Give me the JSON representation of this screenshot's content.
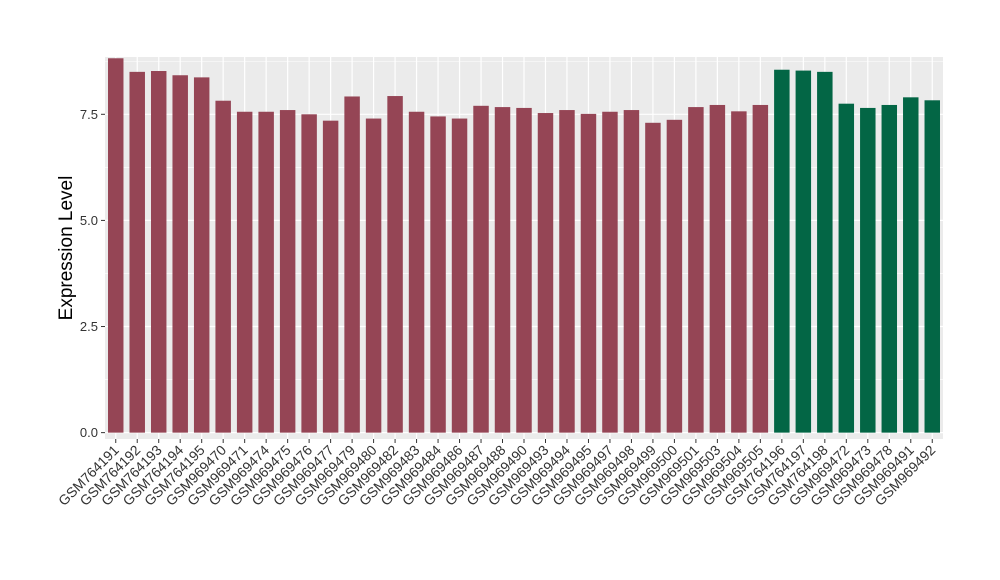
{
  "chart_data": {
    "type": "bar",
    "title": "",
    "xlabel": "",
    "ylabel": "Expression Level",
    "ylim": [
      -0.15,
      8.85
    ],
    "yticks": [
      0.0,
      2.5,
      5.0,
      7.5
    ],
    "ytick_labels": [
      "0.0",
      "2.5",
      "5.0",
      "7.5"
    ],
    "grid": true,
    "legend": "none",
    "colors": {
      "group_a": "#954555",
      "group_b": "#036645",
      "panel": "#ebebeb",
      "grid": "#ffffff"
    },
    "categories": [
      "GSM764191",
      "GSM764192",
      "GSM764193",
      "GSM764194",
      "GSM764195",
      "GSM969470",
      "GSM969471",
      "GSM969474",
      "GSM969475",
      "GSM969476",
      "GSM969477",
      "GSM969479",
      "GSM969480",
      "GSM969482",
      "GSM969483",
      "GSM969484",
      "GSM969486",
      "GSM969487",
      "GSM969488",
      "GSM969490",
      "GSM969493",
      "GSM969494",
      "GSM969495",
      "GSM969497",
      "GSM969498",
      "GSM969499",
      "GSM969500",
      "GSM969501",
      "GSM969503",
      "GSM969504",
      "GSM969505",
      "GSM764196",
      "GSM764197",
      "GSM764198",
      "GSM969472",
      "GSM969473",
      "GSM969478",
      "GSM969491",
      "GSM969492"
    ],
    "values": [
      8.82,
      8.5,
      8.52,
      8.42,
      8.37,
      7.82,
      7.56,
      7.56,
      7.6,
      7.5,
      7.35,
      7.92,
      7.4,
      7.93,
      7.56,
      7.45,
      7.4,
      7.7,
      7.67,
      7.65,
      7.53,
      7.6,
      7.51,
      7.56,
      7.6,
      7.3,
      7.37,
      7.67,
      7.72,
      7.57,
      7.72,
      8.55,
      8.53,
      8.5,
      7.75,
      7.65,
      7.72,
      7.9,
      7.83
    ],
    "groups": [
      "a",
      "a",
      "a",
      "a",
      "a",
      "a",
      "a",
      "a",
      "a",
      "a",
      "a",
      "a",
      "a",
      "a",
      "a",
      "a",
      "a",
      "a",
      "a",
      "a",
      "a",
      "a",
      "a",
      "a",
      "a",
      "a",
      "a",
      "a",
      "a",
      "a",
      "a",
      "b",
      "b",
      "b",
      "b",
      "b",
      "b",
      "b",
      "b"
    ]
  }
}
